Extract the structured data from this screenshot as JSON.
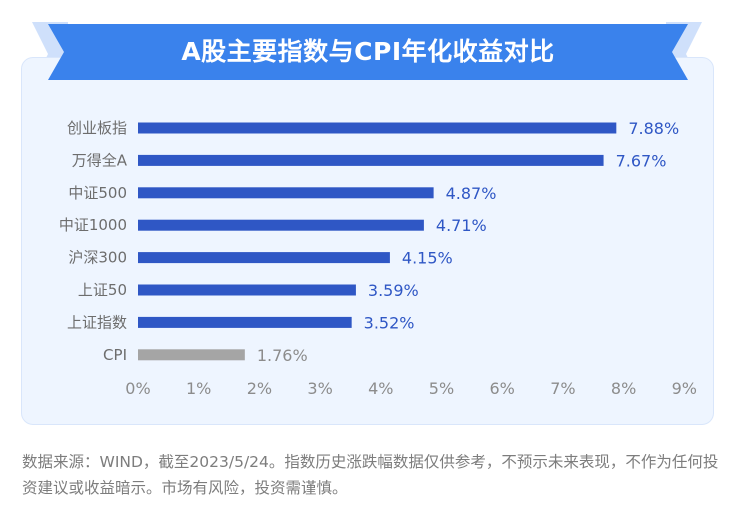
{
  "title": "A股主要指数与CPI年化收益对比",
  "colors": {
    "banner": "#3a82ec",
    "banner_light": "#cfe0fb",
    "bar": "#2f57c5",
    "bar_cpi": "#a5a5a5",
    "label_value": "#2f57c5",
    "label_value_cpi": "#8c8c8c",
    "category_text": "#6d6d6d",
    "axis_text": "#8c8c8c",
    "card_bg": "#eef5ff"
  },
  "chart_data": {
    "type": "bar",
    "orientation": "horizontal",
    "categories": [
      "创业板指",
      "万得全A",
      "中证500",
      "中证1000",
      "沪深300",
      "上证50",
      "上证指数",
      "CPI"
    ],
    "values": [
      7.88,
      7.67,
      4.87,
      4.71,
      4.15,
      3.59,
      3.52,
      1.76
    ],
    "value_labels": [
      "7.88%",
      "7.67%",
      "4.87%",
      "4.71%",
      "4.15%",
      "3.59%",
      "3.52%",
      "1.76%"
    ],
    "highlight": [
      "primary",
      "primary",
      "primary",
      "primary",
      "primary",
      "primary",
      "primary",
      "secondary"
    ],
    "xlim": [
      0,
      9
    ],
    "xticks": [
      "0%",
      "1%",
      "2%",
      "3%",
      "4%",
      "5%",
      "6%",
      "7%",
      "8%",
      "9%"
    ],
    "grid": false,
    "legend": "none"
  },
  "footnote": "数据来源：WIND，截至2023/5/24。指数历史涨跌幅数据仅供参考，不预示未来表现，不作为任何投资建议或收益暗示。市场有风险，投资需谨慎。"
}
